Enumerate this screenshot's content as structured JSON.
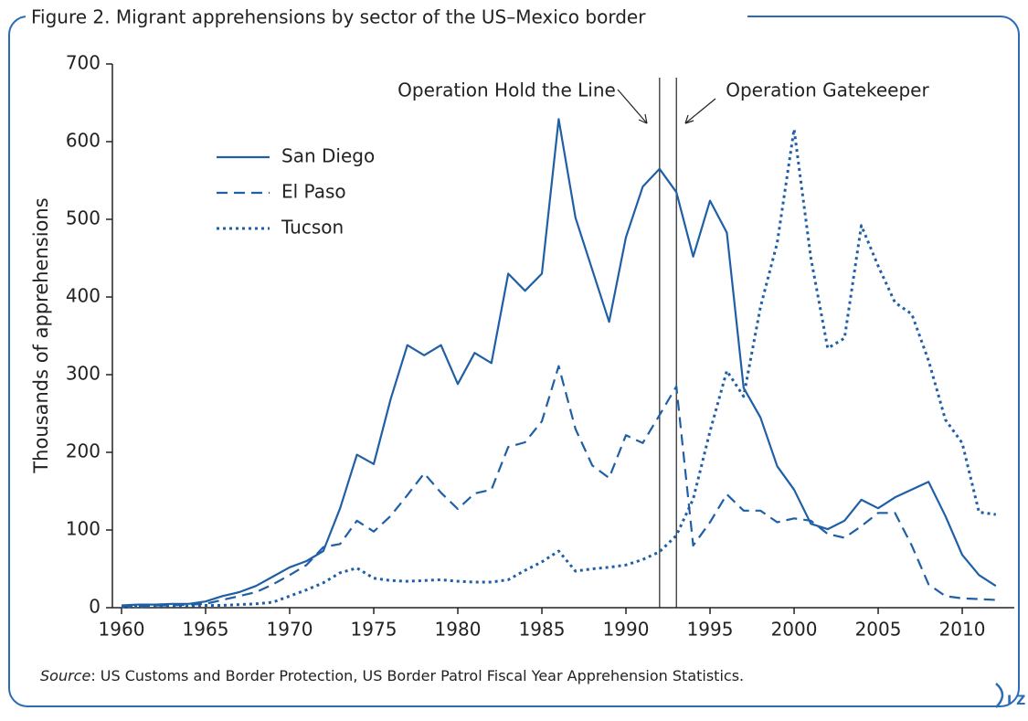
{
  "chart_data": {
    "type": "line",
    "title": "Figure 2. Migrant apprehensions by sector of the US–Mexico border",
    "y_label": "Thousands of apprehensions",
    "x": [
      1960,
      1961,
      1962,
      1963,
      1964,
      1965,
      1966,
      1967,
      1968,
      1969,
      1970,
      1971,
      1972,
      1973,
      1974,
      1975,
      1976,
      1977,
      1978,
      1979,
      1980,
      1981,
      1982,
      1983,
      1984,
      1985,
      1986,
      1987,
      1988,
      1989,
      1990,
      1991,
      1992,
      1993,
      1994,
      1995,
      1996,
      1997,
      1998,
      1999,
      2000,
      2001,
      2002,
      2003,
      2004,
      2005,
      2006,
      2007,
      2008,
      2009,
      2010,
      2011,
      2012
    ],
    "series": [
      {
        "name": "San Diego",
        "color": "#1f5fa6",
        "dash": "solid",
        "values": [
          3,
          4,
          4,
          5,
          5,
          8,
          15,
          20,
          28,
          40,
          52,
          60,
          73,
          128,
          197,
          185,
          268,
          338,
          325,
          338,
          288,
          328,
          315,
          430,
          408,
          430,
          629,
          502,
          435,
          368,
          477,
          542,
          565,
          535,
          452,
          524,
          483,
          283,
          245,
          182,
          152,
          108,
          101,
          112,
          139,
          128,
          142,
          152,
          162,
          118,
          68,
          42,
          28
        ]
      },
      {
        "name": "El Paso",
        "color": "#1f5fa6",
        "dash": "dashed",
        "values": [
          2,
          2,
          3,
          3,
          4,
          5,
          10,
          15,
          20,
          30,
          42,
          55,
          78,
          82,
          112,
          98,
          118,
          145,
          173,
          148,
          127,
          147,
          152,
          207,
          213,
          240,
          311,
          230,
          183,
          167,
          222,
          212,
          248,
          285,
          80,
          110,
          146,
          125,
          125,
          110,
          115,
          112,
          95,
          90,
          105,
          122,
          122,
          80,
          30,
          15,
          12,
          11,
          10
        ]
      },
      {
        "name": "Tucson",
        "color": "#1f5fa6",
        "dash": "dotted",
        "values": [
          1,
          1,
          2,
          2,
          2,
          3,
          3,
          4,
          5,
          7,
          15,
          23,
          32,
          45,
          51,
          38,
          35,
          34,
          35,
          36,
          34,
          33,
          33,
          36,
          48,
          59,
          73,
          47,
          50,
          52,
          55,
          62,
          72,
          93,
          140,
          227,
          305,
          272,
          387,
          470,
          616,
          450,
          334,
          347,
          492,
          440,
          393,
          378,
          318,
          242,
          212,
          123,
          120
        ]
      }
    ],
    "xlim": [
      1959.5,
      2012.9
    ],
    "xticks": [
      1960,
      1965,
      1970,
      1975,
      1980,
      1985,
      1990,
      1995,
      2000,
      2005,
      2010
    ],
    "ylim": [
      0,
      700
    ],
    "yticks": [
      0,
      100,
      200,
      300,
      400,
      500,
      600,
      700
    ],
    "markers": [
      {
        "x": 1992,
        "label": "Operation Hold the Line"
      },
      {
        "x": 1993,
        "label": "Operation Gatekeeper"
      }
    ],
    "legend": "upper left",
    "source_label": "Source",
    "source_text": ": US Customs and Border Protection, US Border Patrol Fiscal Year Apprehension Statistics.",
    "logo": "I Z A"
  }
}
